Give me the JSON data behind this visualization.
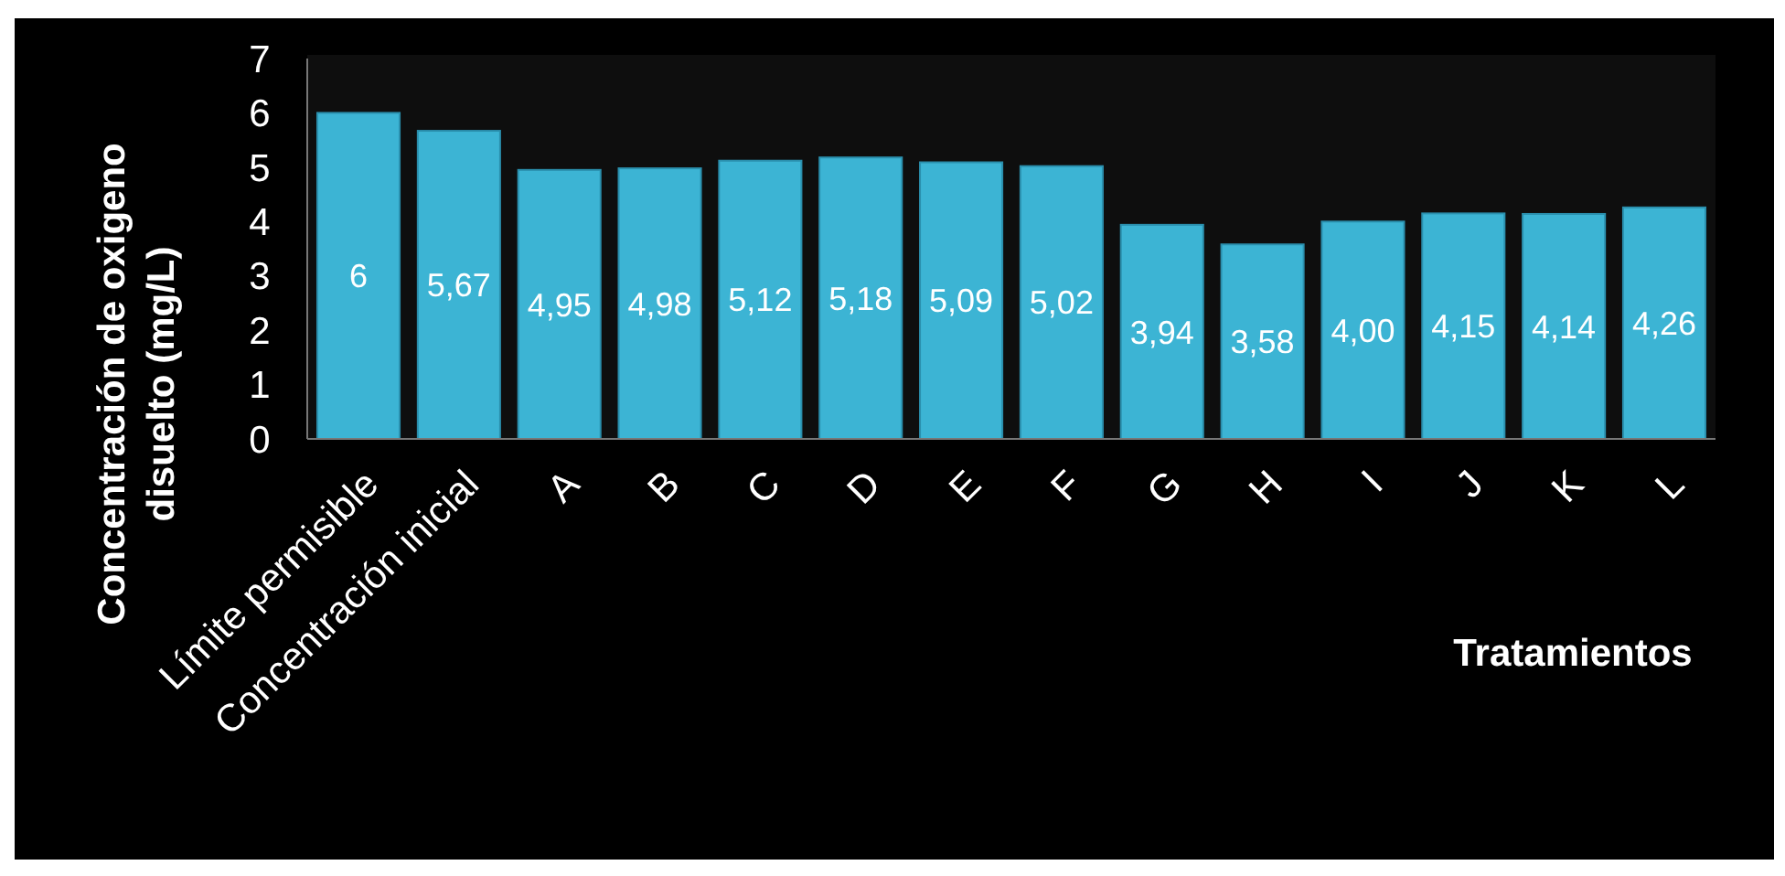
{
  "chart_data": {
    "type": "bar",
    "xlabel": "Tratamientos",
    "ylabel": "Concentración de oxigeno disuelto (mg/L)",
    "categories": [
      "Límite permisible",
      "Concentración inicial",
      "A",
      "B",
      "C",
      "D",
      "E",
      "F",
      "G",
      "H",
      "I",
      "J",
      "K",
      "L"
    ],
    "values": [
      6,
      5.67,
      4.95,
      4.98,
      5.12,
      5.18,
      5.09,
      5.02,
      3.94,
      3.58,
      4.0,
      4.15,
      4.14,
      4.26
    ],
    "value_labels": [
      "6",
      "5,67",
      "4,95",
      "4,98",
      "5,12",
      "5,18",
      "5,09",
      "5,02",
      "3,94",
      "3,58",
      "4,00",
      "4,15",
      "4,14",
      "4,26"
    ],
    "color": "#3cb4d4",
    "ylim": [
      0,
      7
    ],
    "yticks": [
      0,
      1,
      2,
      3,
      4,
      5,
      6,
      7
    ],
    "grid": false
  }
}
